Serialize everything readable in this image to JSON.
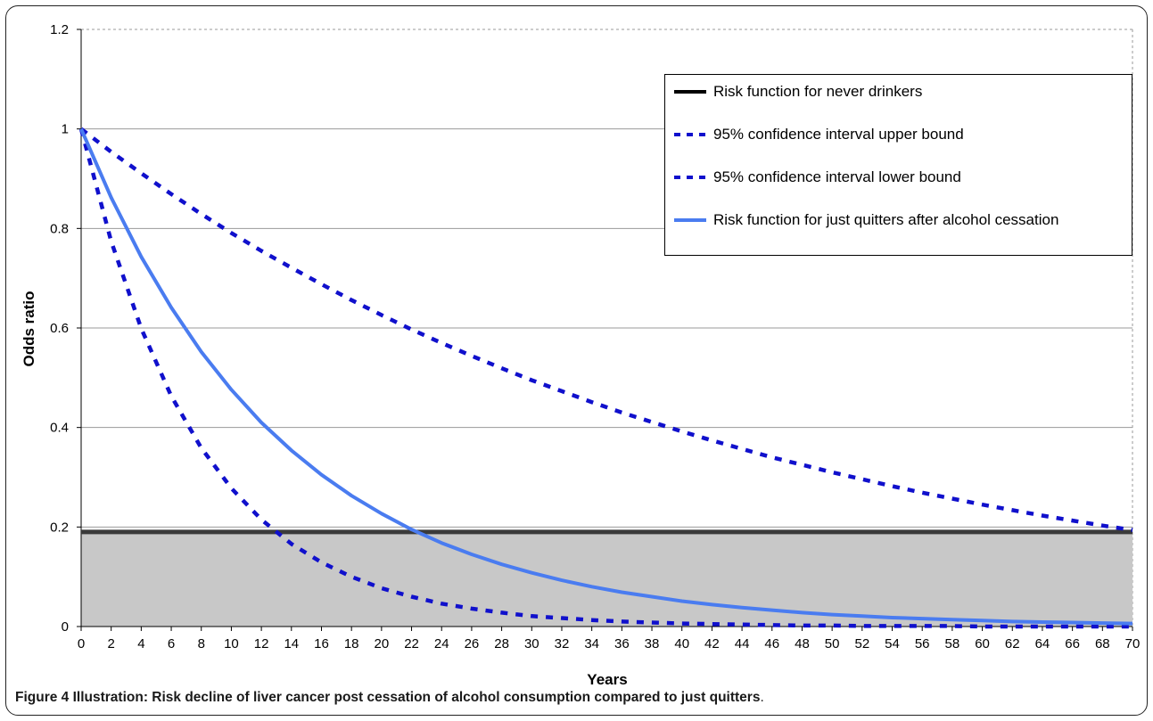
{
  "chart_data": {
    "type": "line",
    "xlabel": "Years",
    "ylabel": "Odds ratio",
    "xlim": [
      0,
      70
    ],
    "ylim": [
      0,
      1.2
    ],
    "x_ticks": [
      0,
      2,
      4,
      6,
      8,
      10,
      12,
      14,
      16,
      18,
      20,
      22,
      24,
      26,
      28,
      30,
      32,
      34,
      36,
      38,
      40,
      42,
      44,
      46,
      48,
      50,
      52,
      54,
      56,
      58,
      60,
      62,
      64,
      66,
      68,
      70
    ],
    "y_ticks": [
      0,
      0.2,
      0.4,
      0.6,
      0.8,
      1,
      1.2
    ],
    "y_tick_labels": [
      "0",
      "0.2",
      "0.4",
      "0.6",
      "0.8",
      "1",
      "1.2"
    ],
    "grid": "horizontal",
    "shaded_region_below": 0.19,
    "series": [
      {
        "name": "Risk function for never drinkers",
        "style": "solid-thick",
        "color": "#3a3a3a",
        "x": [
          0,
          70
        ],
        "y": [
          0.19,
          0.19
        ]
      },
      {
        "name": "95% confidence interval upper bound",
        "style": "dashed",
        "color": "#1010cc",
        "x": [
          0,
          2,
          4,
          6,
          8,
          10,
          12,
          14,
          16,
          18,
          20,
          22,
          24,
          26,
          28,
          30,
          32,
          34,
          36,
          38,
          40,
          42,
          44,
          46,
          48,
          50,
          52,
          54,
          56,
          58,
          60,
          62,
          64,
          66,
          68,
          70
        ],
        "y": [
          1.0,
          0.954,
          0.911,
          0.869,
          0.829,
          0.791,
          0.755,
          0.721,
          0.688,
          0.656,
          0.626,
          0.597,
          0.57,
          0.544,
          0.519,
          0.495,
          0.473,
          0.451,
          0.43,
          0.411,
          0.392,
          0.374,
          0.357,
          0.34,
          0.325,
          0.31,
          0.296,
          0.282,
          0.269,
          0.257,
          0.245,
          0.234,
          0.223,
          0.213,
          0.203,
          0.194
        ]
      },
      {
        "name": "95% confidence interval lower bound",
        "style": "dashed",
        "color": "#1010cc",
        "x": [
          0,
          2,
          4,
          6,
          8,
          10,
          12,
          14,
          16,
          18,
          20,
          22,
          24,
          26,
          28,
          30,
          32,
          34,
          36,
          38,
          40,
          42,
          44,
          46,
          48,
          50,
          52,
          54,
          56,
          58,
          60,
          62,
          64,
          66,
          68,
          70
        ],
        "y": [
          1.0,
          0.774,
          0.599,
          0.463,
          0.359,
          0.278,
          0.215,
          0.166,
          0.129,
          0.1,
          0.077,
          0.06,
          0.046,
          0.036,
          0.028,
          0.021,
          0.017,
          0.013,
          0.01,
          0.008,
          0.006,
          0.005,
          0.004,
          0.003,
          0.002,
          0.002,
          0.001,
          0.001,
          0.001,
          0.001,
          0.0,
          0.0,
          0.0,
          0.0,
          0.0,
          0.0
        ]
      },
      {
        "name": "Risk function for just quitters after alcohol cessation",
        "style": "solid",
        "color": "#4a7cf0",
        "x": [
          0,
          2,
          4,
          6,
          8,
          10,
          12,
          14,
          16,
          18,
          20,
          22,
          24,
          26,
          28,
          30,
          32,
          34,
          36,
          38,
          40,
          42,
          44,
          46,
          48,
          50,
          52,
          54,
          56,
          58,
          60,
          62,
          64,
          66,
          68,
          70
        ],
        "y": [
          1.0,
          0.862,
          0.743,
          0.641,
          0.552,
          0.476,
          0.41,
          0.354,
          0.305,
          0.263,
          0.227,
          0.195,
          0.168,
          0.145,
          0.125,
          0.108,
          0.093,
          0.08,
          0.069,
          0.06,
          0.051,
          0.044,
          0.038,
          0.033,
          0.028,
          0.024,
          0.021,
          0.018,
          0.016,
          0.014,
          0.012,
          0.01,
          0.009,
          0.008,
          0.007,
          0.006
        ]
      }
    ]
  },
  "legend": {
    "items": [
      {
        "label": "Risk function for never drinkers"
      },
      {
        "label": "95% confidence interval upper bound"
      },
      {
        "label": "95% confidence interval lower bound"
      },
      {
        "label": "Risk function for just quitters after alcohol cessation"
      }
    ]
  },
  "caption": {
    "figure_number": "Figure 4",
    "text": " Illustration: Risk decline of liver cancer post cessation of alcohol consumption compared to just quitters",
    "period": "."
  }
}
